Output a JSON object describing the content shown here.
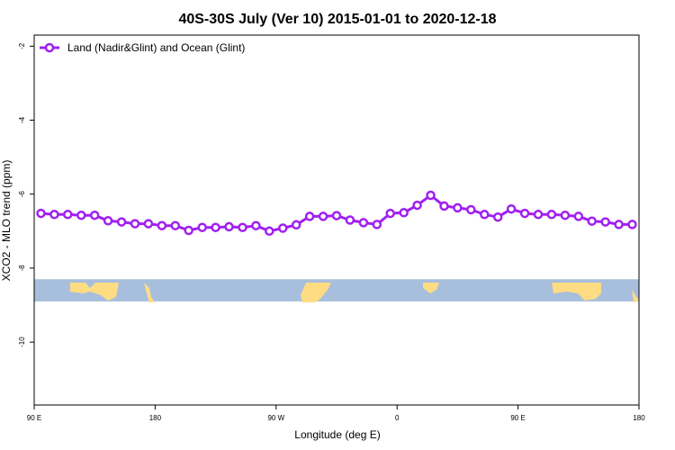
{
  "chart_data": {
    "type": "line",
    "title": "40S-30S July (Ver 10)   2015-01-01 to 2020-12-18",
    "xlabel": "Longitude (deg E)",
    "ylabel": "XCO2 - MLO trend (ppm)",
    "xlim": [
      90,
      540
    ],
    "ylim": [
      -11.7,
      -1.7
    ],
    "x_ticks": [
      {
        "value": 90,
        "label": "90 E"
      },
      {
        "value": 180,
        "label": "180"
      },
      {
        "value": 270,
        "label": "90 W"
      },
      {
        "value": 360,
        "label": "0"
      },
      {
        "value": 450,
        "label": "90 E"
      },
      {
        "value": 540,
        "label": "180"
      }
    ],
    "y_ticks": [
      {
        "value": -2,
        "label": "-2"
      },
      {
        "value": -4,
        "label": "-4"
      },
      {
        "value": -6,
        "label": "-6"
      },
      {
        "value": -8,
        "label": "-8"
      },
      {
        "value": -10,
        "label": "-10"
      }
    ],
    "legend": {
      "position": "top-left",
      "entries": [
        "Land (Nadir&Glint) and Ocean (Glint)"
      ]
    },
    "colors": {
      "series": "#a020f0",
      "ocean": "#a8bedd",
      "land": "#fddc84"
    },
    "map_strip_y_range": [
      -8.9,
      -8.3
    ],
    "series": [
      {
        "name": "Land (Nadir&Glint) and Ocean (Glint)",
        "x": [
          95,
          105,
          115,
          125,
          135,
          145,
          155,
          165,
          175,
          185,
          195,
          205,
          215,
          225,
          235,
          245,
          255,
          265,
          275,
          285,
          295,
          305,
          315,
          325,
          335,
          345,
          355,
          365,
          375,
          385,
          395,
          405,
          415,
          425,
          435,
          445,
          455,
          465,
          475,
          485,
          495,
          505,
          515,
          525,
          535
        ],
        "y": [
          -6.52,
          -6.55,
          -6.55,
          -6.57,
          -6.57,
          -6.72,
          -6.75,
          -6.8,
          -6.8,
          -6.85,
          -6.85,
          -6.98,
          -6.9,
          -6.9,
          -6.88,
          -6.9,
          -6.85,
          -7.0,
          -6.92,
          -6.83,
          -6.6,
          -6.6,
          -6.58,
          -6.7,
          -6.77,
          -6.82,
          -6.52,
          -6.5,
          -6.3,
          -6.03,
          -6.32,
          -6.37,
          -6.42,
          -6.55,
          -6.62,
          -6.4,
          -6.52,
          -6.55,
          -6.55,
          -6.57,
          -6.6,
          -6.73,
          -6.75,
          -6.82,
          -6.82
        ]
      }
    ]
  }
}
